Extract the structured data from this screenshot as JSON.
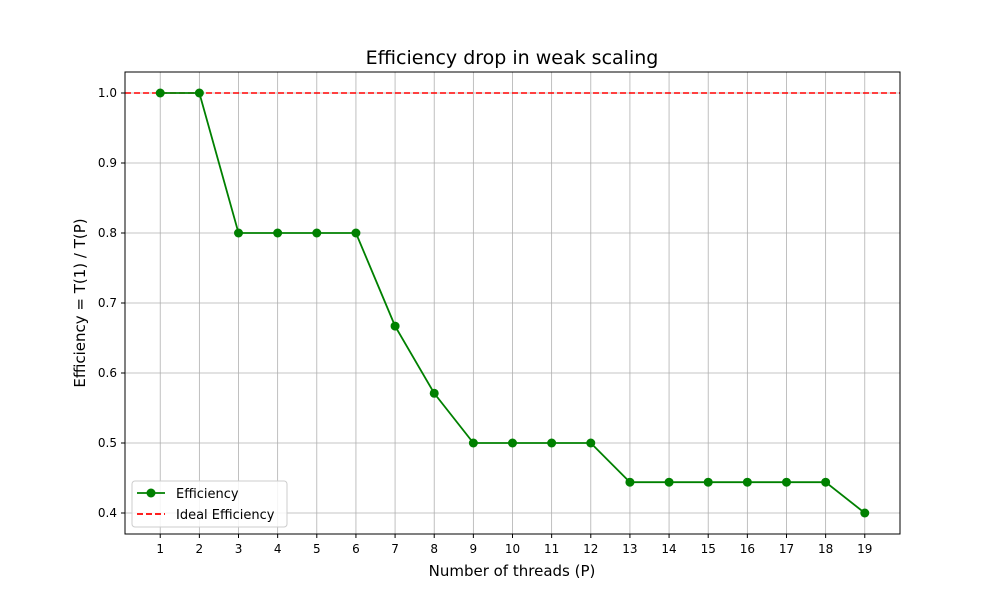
{
  "chart_data": {
    "type": "line",
    "title": "Efficiency drop in weak scaling",
    "xlabel": "Number of threads (P)",
    "ylabel": "Efficiency = T(1) / T(P)",
    "x": [
      1,
      2,
      3,
      4,
      5,
      6,
      7,
      8,
      9,
      10,
      11,
      12,
      13,
      14,
      15,
      16,
      17,
      18,
      19
    ],
    "x_ticks": [
      1,
      2,
      3,
      4,
      5,
      6,
      7,
      8,
      9,
      10,
      11,
      12,
      13,
      14,
      15,
      16,
      17,
      18,
      19
    ],
    "y_ticks": [
      "0.4",
      "0.5",
      "0.6",
      "0.7",
      "0.8",
      "0.9",
      "1.0"
    ],
    "xlim": [
      0.1,
      19.9
    ],
    "ylim": [
      0.37,
      1.03
    ],
    "grid": true,
    "legend_position": "lower-left",
    "series": [
      {
        "name": "Efficiency",
        "style": "solid-line-circle-markers",
        "color": "#008000",
        "values": [
          1.0,
          1.0,
          0.8,
          0.8,
          0.8,
          0.8,
          0.667,
          0.571,
          0.5,
          0.5,
          0.5,
          0.5,
          0.444,
          0.444,
          0.444,
          0.444,
          0.444,
          0.444,
          0.4
        ]
      }
    ],
    "reference_lines": [
      {
        "name": "Ideal Efficiency",
        "y": 1.0,
        "style": "dashed",
        "color": "#ff0000"
      }
    ]
  }
}
